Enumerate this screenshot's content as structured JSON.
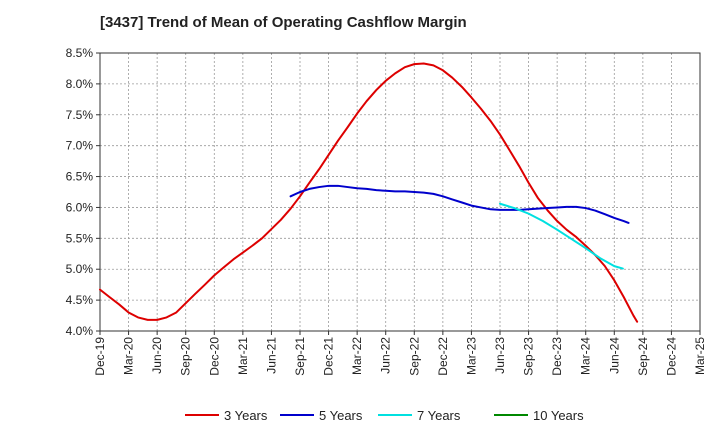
{
  "chart_data": {
    "type": "line",
    "title": "[3437]  Trend of Mean of Operating Cashflow Margin",
    "xlabel": "",
    "ylabel": "",
    "ylim": [
      4.0,
      8.5
    ],
    "yticks": [
      4.0,
      4.5,
      5.0,
      5.5,
      6.0,
      6.5,
      7.0,
      7.5,
      8.0,
      8.5
    ],
    "ytick_labels": [
      "4.0%",
      "4.5%",
      "5.0%",
      "5.5%",
      "6.0%",
      "6.5%",
      "7.0%",
      "7.5%",
      "8.0%",
      "8.5%"
    ],
    "categories": [
      "Dec-19",
      "Mar-20",
      "Jun-20",
      "Sep-20",
      "Dec-20",
      "Mar-21",
      "Jun-21",
      "Sep-21",
      "Dec-21",
      "Mar-22",
      "Jun-22",
      "Sep-22",
      "Dec-22",
      "Mar-23",
      "Jun-23",
      "Sep-23",
      "Dec-23",
      "Mar-24",
      "Jun-24",
      "Sep-24",
      "Dec-24",
      "Mar-25"
    ],
    "grid": true,
    "legend_position": "bottom",
    "series": [
      {
        "name": "3 Years",
        "color": "#dd0000",
        "points": [
          [
            0,
            4.67
          ],
          [
            0.33,
            4.55
          ],
          [
            0.67,
            4.43
          ],
          [
            1,
            4.3
          ],
          [
            1.33,
            4.22
          ],
          [
            1.67,
            4.18
          ],
          [
            2,
            4.18
          ],
          [
            2.33,
            4.22
          ],
          [
            2.67,
            4.3
          ],
          [
            3,
            4.45
          ],
          [
            3.33,
            4.6
          ],
          [
            3.67,
            4.75
          ],
          [
            4,
            4.9
          ],
          [
            4.33,
            5.03
          ],
          [
            4.67,
            5.16
          ],
          [
            5,
            5.27
          ],
          [
            5.33,
            5.38
          ],
          [
            5.67,
            5.5
          ],
          [
            6,
            5.65
          ],
          [
            6.33,
            5.8
          ],
          [
            6.67,
            5.98
          ],
          [
            7,
            6.18
          ],
          [
            7.33,
            6.4
          ],
          [
            7.67,
            6.62
          ],
          [
            8,
            6.85
          ],
          [
            8.33,
            7.08
          ],
          [
            8.67,
            7.3
          ],
          [
            9,
            7.52
          ],
          [
            9.33,
            7.72
          ],
          [
            9.67,
            7.9
          ],
          [
            10,
            8.05
          ],
          [
            10.33,
            8.17
          ],
          [
            10.67,
            8.27
          ],
          [
            11,
            8.32
          ],
          [
            11.33,
            8.33
          ],
          [
            11.67,
            8.3
          ],
          [
            12,
            8.22
          ],
          [
            12.33,
            8.1
          ],
          [
            12.67,
            7.95
          ],
          [
            13,
            7.78
          ],
          [
            13.33,
            7.6
          ],
          [
            13.67,
            7.4
          ],
          [
            14,
            7.18
          ],
          [
            14.33,
            6.93
          ],
          [
            14.67,
            6.67
          ],
          [
            15,
            6.4
          ],
          [
            15.33,
            6.15
          ],
          [
            15.67,
            5.95
          ],
          [
            16,
            5.78
          ],
          [
            16.33,
            5.64
          ],
          [
            16.67,
            5.52
          ],
          [
            17,
            5.38
          ],
          [
            17.33,
            5.23
          ],
          [
            17.67,
            5.05
          ],
          [
            18,
            4.82
          ],
          [
            18.33,
            4.55
          ],
          [
            18.67,
            4.25
          ],
          [
            18.8,
            4.15
          ]
        ]
      },
      {
        "name": "5 Years",
        "color": "#0000cc",
        "points": [
          [
            6.67,
            6.18
          ],
          [
            7,
            6.25
          ],
          [
            7.33,
            6.3
          ],
          [
            7.67,
            6.33
          ],
          [
            8,
            6.35
          ],
          [
            8.33,
            6.35
          ],
          [
            8.67,
            6.33
          ],
          [
            9,
            6.31
          ],
          [
            9.33,
            6.3
          ],
          [
            9.67,
            6.28
          ],
          [
            10,
            6.27
          ],
          [
            10.33,
            6.26
          ],
          [
            10.67,
            6.26
          ],
          [
            11,
            6.25
          ],
          [
            11.33,
            6.24
          ],
          [
            11.67,
            6.22
          ],
          [
            12,
            6.18
          ],
          [
            12.33,
            6.13
          ],
          [
            12.67,
            6.08
          ],
          [
            13,
            6.03
          ],
          [
            13.33,
            6.0
          ],
          [
            13.67,
            5.97
          ],
          [
            14,
            5.96
          ],
          [
            14.33,
            5.96
          ],
          [
            14.67,
            5.96
          ],
          [
            15,
            5.97
          ],
          [
            15.33,
            5.98
          ],
          [
            15.67,
            5.99
          ],
          [
            16,
            6.0
          ],
          [
            16.33,
            6.01
          ],
          [
            16.67,
            6.01
          ],
          [
            17,
            5.99
          ],
          [
            17.33,
            5.95
          ],
          [
            17.67,
            5.89
          ],
          [
            18,
            5.83
          ],
          [
            18.33,
            5.78
          ],
          [
            18.5,
            5.75
          ]
        ]
      },
      {
        "name": "7 Years",
        "color": "#00e0e0",
        "points": [
          [
            14,
            6.06
          ],
          [
            14.5,
            5.99
          ],
          [
            15,
            5.9
          ],
          [
            15.5,
            5.78
          ],
          [
            16,
            5.64
          ],
          [
            16.5,
            5.49
          ],
          [
            17,
            5.34
          ],
          [
            17.5,
            5.18
          ],
          [
            18,
            5.05
          ],
          [
            18.3,
            5.01
          ]
        ]
      },
      {
        "name": "10 Years",
        "color": "#008800",
        "points": []
      }
    ]
  }
}
